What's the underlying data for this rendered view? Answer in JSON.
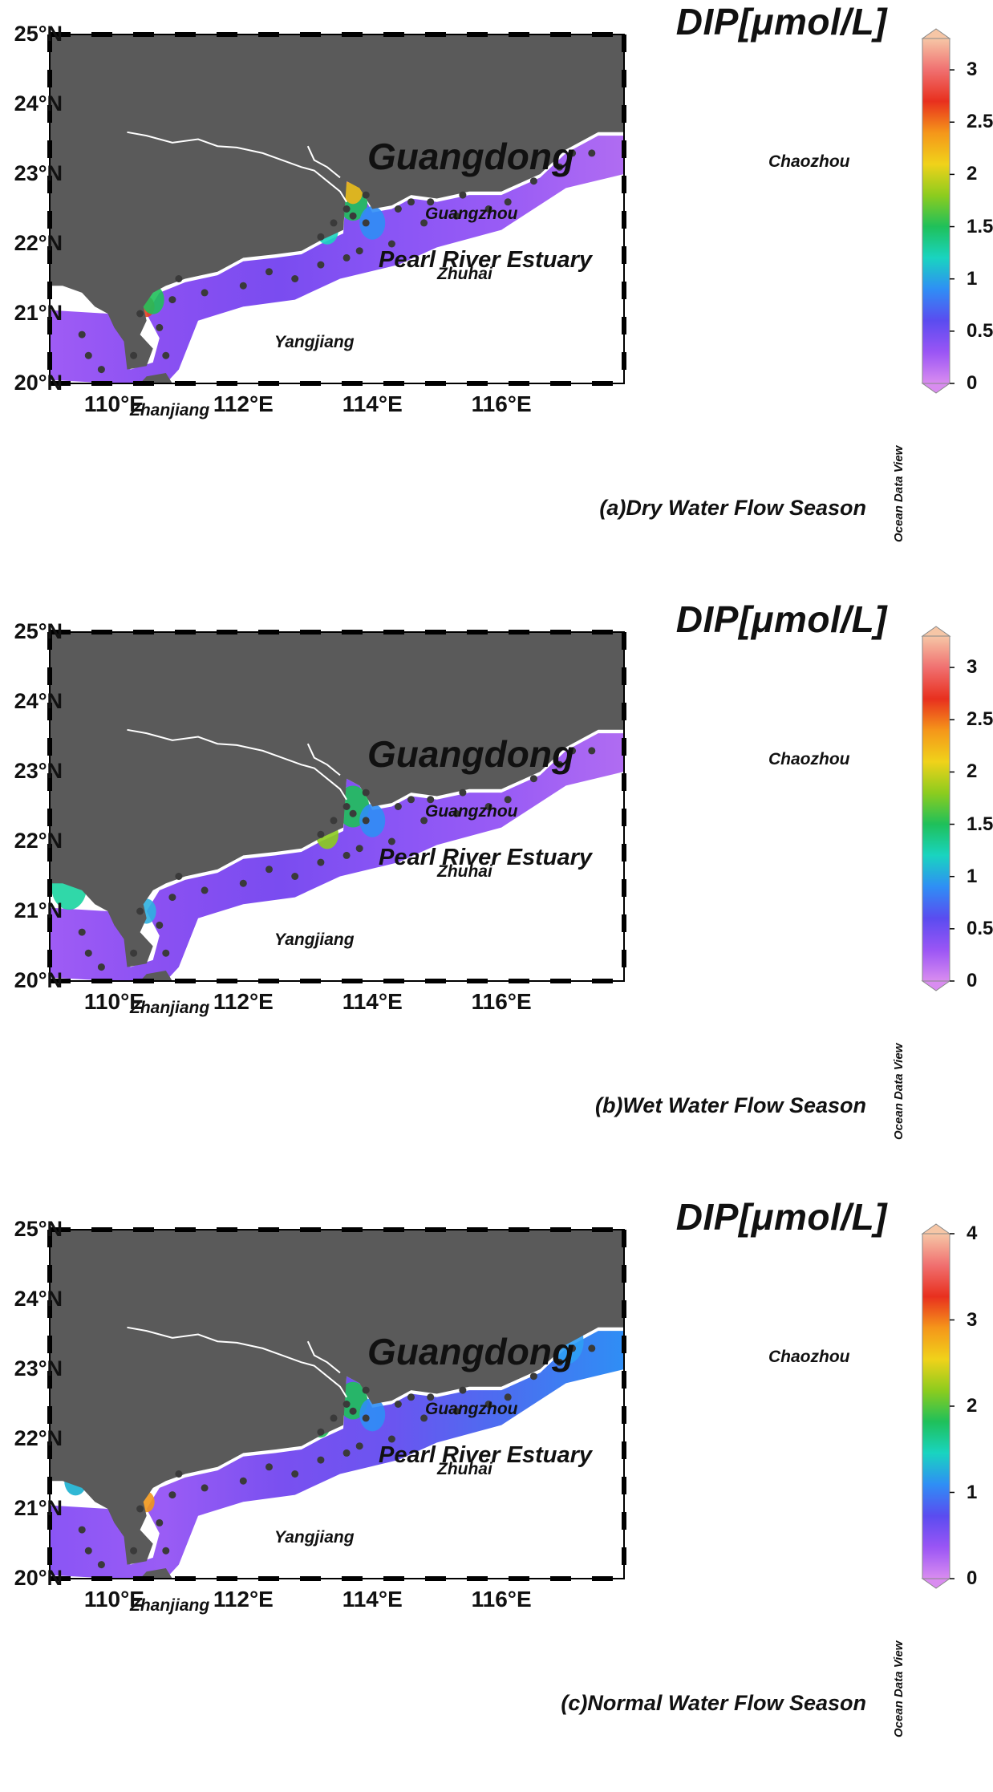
{
  "maps": [
    {
      "id": "dry",
      "title": "DIP[μmol/L]",
      "season_label": "(a)Dry Water Flow Season",
      "colorbar": {
        "min": 0,
        "max": 3.3,
        "ticks": [
          "0",
          "0.5",
          "1",
          "1.5",
          "2",
          "2.5",
          "3"
        ],
        "tick_values": [
          0,
          0.5,
          1,
          1.5,
          2,
          2.5,
          3
        ]
      }
    },
    {
      "id": "wet",
      "title": "DIP[μmol/L]",
      "season_label": "(b)Wet Water Flow Season",
      "colorbar": {
        "min": 0,
        "max": 3.3,
        "ticks": [
          "0",
          "0.5",
          "1",
          "1.5",
          "2",
          "2.5",
          "3"
        ],
        "tick_values": [
          0,
          0.5,
          1,
          1.5,
          2,
          2.5,
          3
        ]
      }
    },
    {
      "id": "normal",
      "title": "DIP[μmol/L]",
      "season_label": "(c)Normal Water Flow Season",
      "colorbar": {
        "min": 0,
        "max": 4,
        "ticks": [
          "0",
          "1",
          "2",
          "3",
          "4"
        ],
        "tick_values": [
          0,
          1,
          2,
          3,
          4
        ]
      }
    }
  ],
  "lat_labels": [
    "25°N",
    "24°N",
    "23°N",
    "22°N",
    "21°N",
    "20°N"
  ],
  "lon_labels": [
    "110°E",
    "112°E",
    "114°E",
    "116°E"
  ],
  "places": {
    "province": "Guangdong",
    "estuary": "Pearl River Estuary",
    "cities": [
      "Guangzhou",
      "Zhuhai",
      "Yangjiang",
      "Zhanjiang",
      "Chaozhou"
    ]
  },
  "watermark": "Ocean Data View",
  "colors": {
    "land": "#5a5a5a",
    "river": "#ffffff",
    "station": "#3a3a3a",
    "colormap": [
      "#d98cf0",
      "#9a55f5",
      "#5a4cf0",
      "#2f8ef5",
      "#19d4c0",
      "#1fc05a",
      "#8ccc1e",
      "#f0d21a",
      "#f5961a",
      "#e8301e",
      "#f07070",
      "#f6c6a6"
    ]
  },
  "stations": [
    [
      109.5,
      20.7
    ],
    [
      109.6,
      20.4
    ],
    [
      109.8,
      20.2
    ],
    [
      110.3,
      20.4
    ],
    [
      110.7,
      20.8
    ],
    [
      110.8,
      20.4
    ],
    [
      110.4,
      21.0
    ],
    [
      110.9,
      21.2
    ],
    [
      111.0,
      21.5
    ],
    [
      111.4,
      21.3
    ],
    [
      112.0,
      21.4
    ],
    [
      112.4,
      21.6
    ],
    [
      112.8,
      21.5
    ],
    [
      113.2,
      21.7
    ],
    [
      113.6,
      21.8
    ],
    [
      113.8,
      21.9
    ],
    [
      114.3,
      22.0
    ],
    [
      113.4,
      22.3
    ],
    [
      113.6,
      22.5
    ],
    [
      113.7,
      22.4
    ],
    [
      113.9,
      22.3
    ],
    [
      113.2,
      22.1
    ],
    [
      114.4,
      22.5
    ],
    [
      114.8,
      22.3
    ],
    [
      114.9,
      22.6
    ],
    [
      115.3,
      22.4
    ],
    [
      115.4,
      22.7
    ],
    [
      115.8,
      22.5
    ],
    [
      116.1,
      22.6
    ],
    [
      116.5,
      22.9
    ],
    [
      116.9,
      23.1
    ],
    [
      117.1,
      23.3
    ],
    [
      117.4,
      23.3
    ],
    [
      114.6,
      22.6
    ],
    [
      113.9,
      22.7
    ]
  ]
}
